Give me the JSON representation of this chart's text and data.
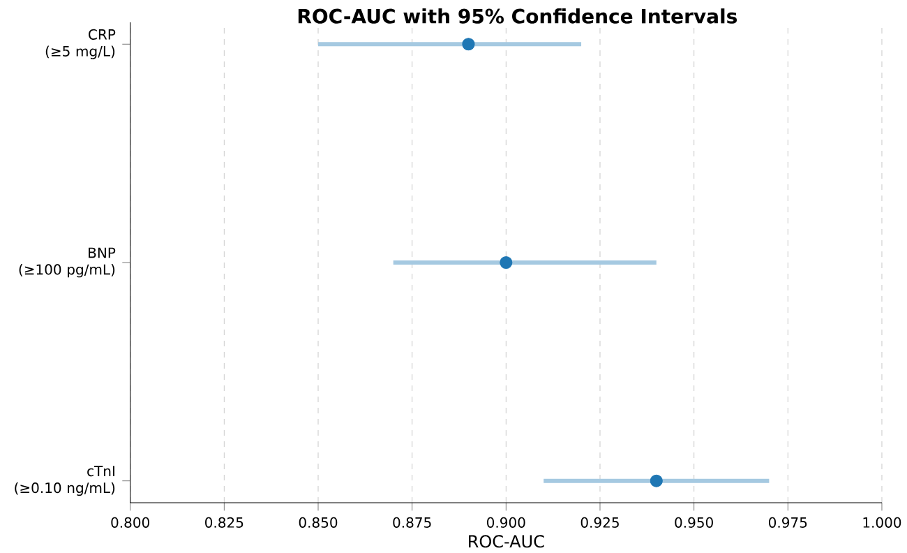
{
  "chart_data": {
    "type": "scatter",
    "orientation": "horizontal",
    "title": "ROC-AUC with 95% Confidence Intervals",
    "xlabel": "ROC-AUC",
    "categories": [
      "CRP\n(≥5 mg/L)",
      "BNP\n(≥100 pg/mL)",
      "cTnI\n(≥0.10 ng/mL)"
    ],
    "series": [
      {
        "color": "#1f77b4",
        "values": [
          0.89,
          0.9,
          0.94
        ],
        "errors": [
          [
            0.85,
            0.92
          ],
          [
            0.87,
            0.94
          ],
          [
            0.91,
            0.97
          ]
        ]
      }
    ],
    "xlim": [
      0.8,
      1.0
    ],
    "xticks": [
      {
        "value": 0.8,
        "label": "0.800"
      },
      {
        "value": 0.825,
        "label": "0.825"
      },
      {
        "value": 0.85,
        "label": "0.850"
      },
      {
        "value": 0.875,
        "label": "0.875"
      },
      {
        "value": 0.9,
        "label": "0.900"
      },
      {
        "value": 0.925,
        "label": "0.925"
      },
      {
        "value": 0.95,
        "label": "0.950"
      },
      {
        "value": 0.975,
        "label": "0.975"
      },
      {
        "value": 1.0,
        "label": "1.000"
      }
    ],
    "grid": "x",
    "marker": "circle"
  }
}
